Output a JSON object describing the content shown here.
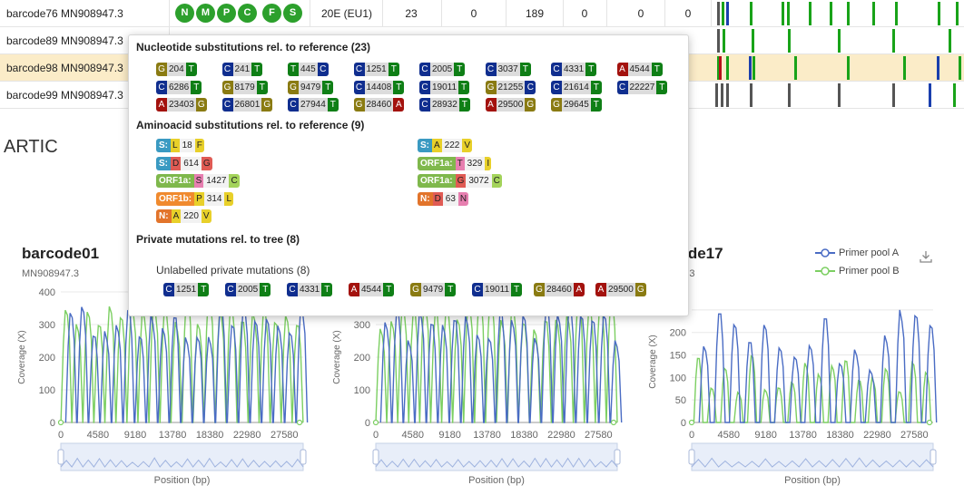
{
  "colors": {
    "green": "#19a319",
    "blue": "#1a3fad",
    "gray": "#555555",
    "red": "#b5121b",
    "highlight": "#fbecc8",
    "poolA": "#4a6cc4",
    "poolB": "#7ccf62"
  },
  "nuc_colors": {
    "A": "#a3120e",
    "C": "#102e8f",
    "G": "#8a7b12",
    "T": "#0f7f16"
  },
  "gene_colors": {
    "S:": "#3a9ac2",
    "N:": "#e2742b",
    "ORF1a:": "#7fb84c",
    "ORF1b:": "#f08a2e"
  },
  "aa_colors": {
    "L": "#e8d02a",
    "F": "#e8d02a",
    "A": "#e8d02a",
    "V": "#e8d02a",
    "I": "#e8d02a",
    "P": "#e8d02a",
    "D": "#e05b54",
    "G": "#e05b54",
    "T": "#e77fb0",
    "S": "#e77fb0",
    "N": "#e77fb0",
    "C": "#a3d35a"
  },
  "rows": [
    {
      "sample": "barcode76 MN908947.3",
      "labels": [
        "N",
        "M",
        "P",
        "C",
        "F",
        "S"
      ],
      "clade": "20E (EU1)",
      "c1": "23",
      "c2": "0",
      "c3": "189",
      "c4": "0",
      "c5": "0",
      "c6": "0"
    },
    {
      "sample": "barcode89 MN908947.3"
    },
    {
      "sample": "barcode98 MN908947.3"
    },
    {
      "sample": "barcode99 MN908947.3"
    }
  ],
  "section_title": "ARTIC",
  "popover": {
    "nuc_header": "Nucleotide substitutions rel. to reference (23)",
    "nuc": [
      {
        "ref": "G",
        "pos": "204",
        "alt": "T"
      },
      {
        "ref": "C",
        "pos": "241",
        "alt": "T"
      },
      {
        "ref": "T",
        "pos": "445",
        "alt": "C"
      },
      {
        "ref": "C",
        "pos": "1251",
        "alt": "T"
      },
      {
        "ref": "C",
        "pos": "2005",
        "alt": "T"
      },
      {
        "ref": "C",
        "pos": "3037",
        "alt": "T"
      },
      {
        "ref": "C",
        "pos": "4331",
        "alt": "T"
      },
      {
        "ref": "A",
        "pos": "4544",
        "alt": "T"
      },
      {
        "ref": "C",
        "pos": "6286",
        "alt": "T"
      },
      {
        "ref": "G",
        "pos": "8179",
        "alt": "T"
      },
      {
        "ref": "G",
        "pos": "9479",
        "alt": "T"
      },
      {
        "ref": "C",
        "pos": "14408",
        "alt": "T"
      },
      {
        "ref": "C",
        "pos": "19011",
        "alt": "T"
      },
      {
        "ref": "G",
        "pos": "21255",
        "alt": "C"
      },
      {
        "ref": "C",
        "pos": "21614",
        "alt": "T"
      },
      {
        "ref": "C",
        "pos": "22227",
        "alt": "T"
      },
      {
        "ref": "A",
        "pos": "23403",
        "alt": "G"
      },
      {
        "ref": "C",
        "pos": "26801",
        "alt": "G"
      },
      {
        "ref": "C",
        "pos": "27944",
        "alt": "T"
      },
      {
        "ref": "G",
        "pos": "28460",
        "alt": "A"
      },
      {
        "ref": "C",
        "pos": "28932",
        "alt": "T"
      },
      {
        "ref": "A",
        "pos": "29500",
        "alt": "G"
      },
      {
        "ref": "G",
        "pos": "29645",
        "alt": "T"
      }
    ],
    "aa_header": "Aminoacid substitutions rel. to reference (9)",
    "aa": [
      {
        "gene": "S:",
        "ref": "L",
        "pos": "18",
        "alt": "F"
      },
      {
        "gene": "S:",
        "ref": "A",
        "pos": "222",
        "alt": "V"
      },
      {
        "gene": "S:",
        "ref": "D",
        "pos": "614",
        "alt": "G"
      },
      {
        "gene": "ORF1a:",
        "ref": "T",
        "pos": "329",
        "alt": "I"
      },
      {
        "gene": "ORF1a:",
        "ref": "S",
        "pos": "1427",
        "alt": "C"
      },
      {
        "gene": "ORF1a:",
        "ref": "G",
        "pos": "3072",
        "alt": "C"
      },
      {
        "gene": "ORF1b:",
        "ref": "P",
        "pos": "314",
        "alt": "L"
      },
      {
        "gene": "N:",
        "ref": "D",
        "pos": "63",
        "alt": "N"
      },
      {
        "gene": "N:",
        "ref": "A",
        "pos": "220",
        "alt": "V"
      }
    ],
    "private_header": "Private mutations rel. to tree (8)",
    "unlabelled_header": "Unlabelled private mutations (8)",
    "private": [
      {
        "ref": "C",
        "pos": "1251",
        "alt": "T"
      },
      {
        "ref": "C",
        "pos": "2005",
        "alt": "T"
      },
      {
        "ref": "C",
        "pos": "4331",
        "alt": "T"
      },
      {
        "ref": "A",
        "pos": "4544",
        "alt": "T"
      },
      {
        "ref": "G",
        "pos": "9479",
        "alt": "T"
      },
      {
        "ref": "C",
        "pos": "19011",
        "alt": "T"
      },
      {
        "ref": "G",
        "pos": "28460",
        "alt": "A"
      },
      {
        "ref": "A",
        "pos": "29500",
        "alt": "G"
      }
    ]
  },
  "legend": {
    "a": "Primer pool A",
    "b": "Primer pool B"
  },
  "chart_data": [
    {
      "type": "line",
      "title": "barcode01",
      "subtitle": "MN908947.3",
      "xlabel": "Position (bp)",
      "ylabel": "Coverage (X)",
      "xlim": [
        0,
        29903
      ],
      "ylim": [
        0,
        400
      ],
      "yticks": [
        0,
        100,
        200,
        300,
        400
      ],
      "xticks": [
        0,
        4580,
        9180,
        13780,
        18380,
        22980,
        27580
      ],
      "series": [
        {
          "name": "Primer pool A"
        },
        {
          "name": "Primer pool B"
        }
      ]
    },
    {
      "type": "line",
      "title": "",
      "subtitle": "",
      "xlabel": "Position (bp)",
      "ylabel": "Coverage (X)",
      "xlim": [
        0,
        29903
      ],
      "ylim": [
        0,
        400
      ],
      "yticks": [
        0,
        100,
        200,
        300
      ],
      "xticks": [
        0,
        4580,
        9180,
        13780,
        18380,
        22980,
        27580
      ],
      "series": [
        {
          "name": "Primer pool A"
        },
        {
          "name": "Primer pool B"
        }
      ]
    },
    {
      "type": "line",
      "title": "code17",
      "subtitle": "947.3",
      "xlabel": "Position (bp)",
      "ylabel": "Coverage (X)",
      "xlim": [
        0,
        29903
      ],
      "ylim": [
        0,
        270
      ],
      "yticks": [
        0,
        50,
        100,
        150,
        200,
        250
      ],
      "xticks": [
        0,
        4580,
        9180,
        13780,
        18380,
        22980,
        27580
      ],
      "series": [
        {
          "name": "Primer pool A"
        },
        {
          "name": "Primer pool B"
        }
      ]
    }
  ]
}
